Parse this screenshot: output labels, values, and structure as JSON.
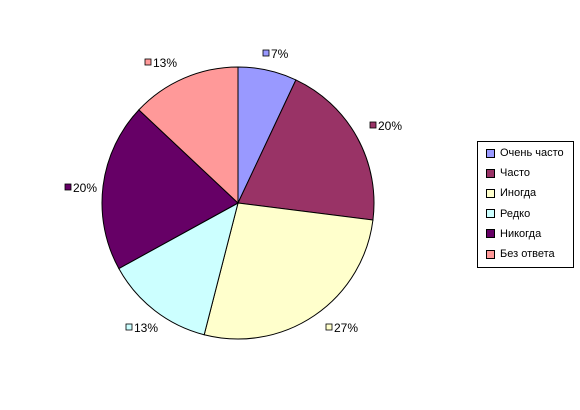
{
  "chart_data": {
    "type": "pie",
    "categories": [
      "Очень часто",
      "Часто",
      "Иногда",
      "Редко",
      "Никогда",
      "Без ответа"
    ],
    "values": [
      7,
      20,
      27,
      13,
      20,
      13
    ],
    "data_labels": [
      "7%",
      "20%",
      "27%",
      "13%",
      "20%",
      "13%"
    ],
    "colors": [
      "#9999FF",
      "#993366",
      "#FFFFCC",
      "#CCFFFF",
      "#660066",
      "#FF9999"
    ],
    "legend": "right"
  }
}
